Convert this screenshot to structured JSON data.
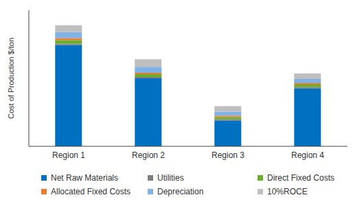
{
  "chart_data": {
    "type": "bar",
    "stacked": true,
    "tick_labels": "x",
    "ylabel": "Cost of Production $/ton",
    "categories": [
      "Region 1",
      "Region 2",
      "Region 3",
      "Region 4"
    ],
    "ylim": [
      0,
      200
    ],
    "series": [
      {
        "name": "Net Raw Materials",
        "color": "#0070c0",
        "values": [
          149,
          100,
          38,
          85
        ]
      },
      {
        "name": "Utilities",
        "color": "#7f7f7f",
        "values": [
          2,
          2,
          2,
          2
        ]
      },
      {
        "name": "Direct Fixed Costs",
        "color": "#6aaf2b",
        "values": [
          5,
          4,
          3,
          4
        ]
      },
      {
        "name": "Allocated Fixed Costs",
        "color": "#ed7d31",
        "values": [
          3,
          2,
          2,
          2
        ]
      },
      {
        "name": "Depreciation",
        "color": "#7fb2e5",
        "values": [
          9,
          9,
          6,
          6
        ]
      },
      {
        "name": "10%ROCE",
        "color": "#bfbfbf",
        "values": [
          10,
          11,
          8,
          8
        ]
      }
    ]
  }
}
